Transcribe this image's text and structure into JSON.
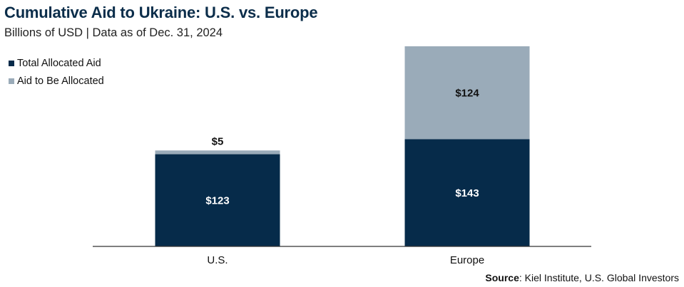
{
  "header": {
    "title": "Cumulative Aid to Ukraine: U.S. vs. Europe",
    "subtitle": "Billions of USD | Data as of Dec. 31, 2024"
  },
  "legend": {
    "items": [
      {
        "label": "Total Allocated Aid",
        "color": "#062b4a"
      },
      {
        "label": "Aid to Be Allocated",
        "color": "#9aabb9"
      }
    ]
  },
  "source": {
    "label": "Source",
    "text": ": Kiel Institute, U.S. Global Investors"
  },
  "chart_data": {
    "type": "bar",
    "stacked": true,
    "categories": [
      "U.S.",
      "Europe"
    ],
    "series": [
      {
        "name": "Total Allocated Aid",
        "values": [
          123,
          143
        ],
        "labels": [
          "$123",
          "$143"
        ],
        "color": "#062b4a",
        "label_color": "#ffffff"
      },
      {
        "name": "Aid to Be Allocated",
        "values": [
          5,
          124
        ],
        "labels": [
          "$5",
          "$124"
        ],
        "color": "#9aabb9",
        "label_color": "#111111"
      }
    ],
    "ylim": [
      0,
      267
    ],
    "grid": false,
    "legend_position": "top-left"
  }
}
